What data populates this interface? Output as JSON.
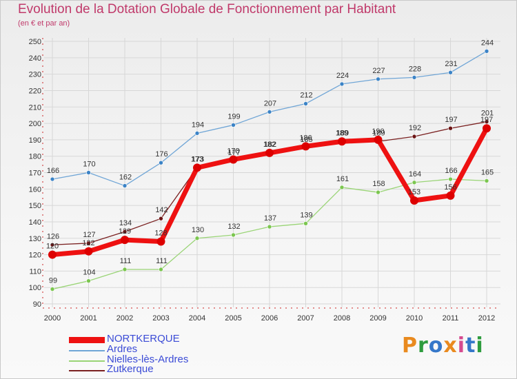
{
  "title": "Evolution de la Dotation Globale de Fonctionnement par Habitant",
  "subtitle": "(en € et par an)",
  "brand": "Proxiti",
  "colors": {
    "title": "#c0396a",
    "axis": "#cc2222",
    "grid": "#d7d7d7",
    "label": "#333333",
    "legend_text": "#3b4bd6"
  },
  "chart_data": {
    "type": "line",
    "title": "Evolution de la Dotation Globale de Fonctionnement par Habitant",
    "subtitle": "(en € et par an)",
    "xlabel": "",
    "ylabel": "",
    "ylim": [
      90,
      250
    ],
    "yticks": [
      90,
      100,
      110,
      120,
      130,
      140,
      150,
      160,
      170,
      180,
      190,
      200,
      210,
      220,
      230,
      240,
      250
    ],
    "grid": true,
    "legend_position": "bottom-left",
    "categories": [
      "2000",
      "2001",
      "2002",
      "2003",
      "2004",
      "2005",
      "2006",
      "2007",
      "2008",
      "2009",
      "2010",
      "2011",
      "2012"
    ],
    "series": [
      {
        "name": "Ardres",
        "color": "#6fa5d6",
        "marker": "#3b83c6",
        "values": [
          166,
          170,
          162,
          176,
          194,
          199,
          207,
          212,
          224,
          227,
          228,
          231,
          244
        ]
      },
      {
        "name": "Nielles-lès-Ardres",
        "color": "#99d475",
        "marker": "#7bc64f",
        "values": [
          99,
          104,
          111,
          111,
          130,
          132,
          137,
          139,
          161,
          158,
          164,
          166,
          165
        ]
      },
      {
        "name": "Zutkerque",
        "color": "#7a2020",
        "marker": "#6b1414",
        "values": [
          126,
          127,
          134,
          142,
          173,
          177,
          182,
          185,
          189,
          189,
          192,
          197,
          201
        ]
      },
      {
        "name": "NORTKERQUE",
        "color": "#ee1111",
        "marker": "#dd0000",
        "values": [
          120,
          122,
          129,
          128,
          173,
          178,
          182,
          186,
          189,
          190,
          153,
          156,
          197
        ]
      }
    ],
    "legend": [
      "NORTKERQUE",
      "Ardres",
      "Nielles-lès-Ardres",
      "Zutkerque"
    ]
  }
}
